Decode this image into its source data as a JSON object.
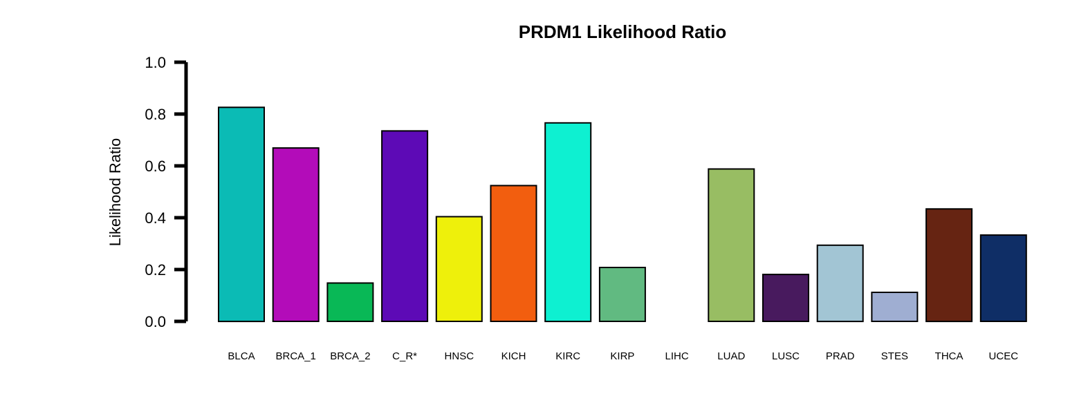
{
  "chart_data": {
    "type": "bar",
    "title": "PRDM1 Likelihood Ratio",
    "xlabel": "",
    "ylabel": "Likelihood Ratio",
    "ylim": [
      0,
      1
    ],
    "yticks": [
      "0.0",
      "0.2",
      "0.4",
      "0.6",
      "0.8",
      "1.0"
    ],
    "grid": false,
    "legend": "none",
    "categories": [
      "BLCA",
      "BRCA_1",
      "BRCA_2",
      "C_R*",
      "HNSC",
      "KICH",
      "KIRC",
      "KIRP",
      "LIHC",
      "LUAD",
      "LUSC",
      "PRAD",
      "STES",
      "THCA",
      "UCEC"
    ],
    "values": [
      0.826,
      0.669,
      0.148,
      0.735,
      0.404,
      0.524,
      0.766,
      0.208,
      0.0,
      0.588,
      0.181,
      0.294,
      0.112,
      0.434,
      0.333
    ],
    "colors": [
      "#0BBBB5",
      "#B30CB9",
      "#09B856",
      "#5D0AB6",
      "#EEF00B",
      "#F25E0F",
      "#0EF0D1",
      "#61BA81",
      "#FFFFFF",
      "#98BD63",
      "#481A5E",
      "#A2C5D4",
      "#9FAED2",
      "#662412",
      "#0F2E66"
    ]
  }
}
